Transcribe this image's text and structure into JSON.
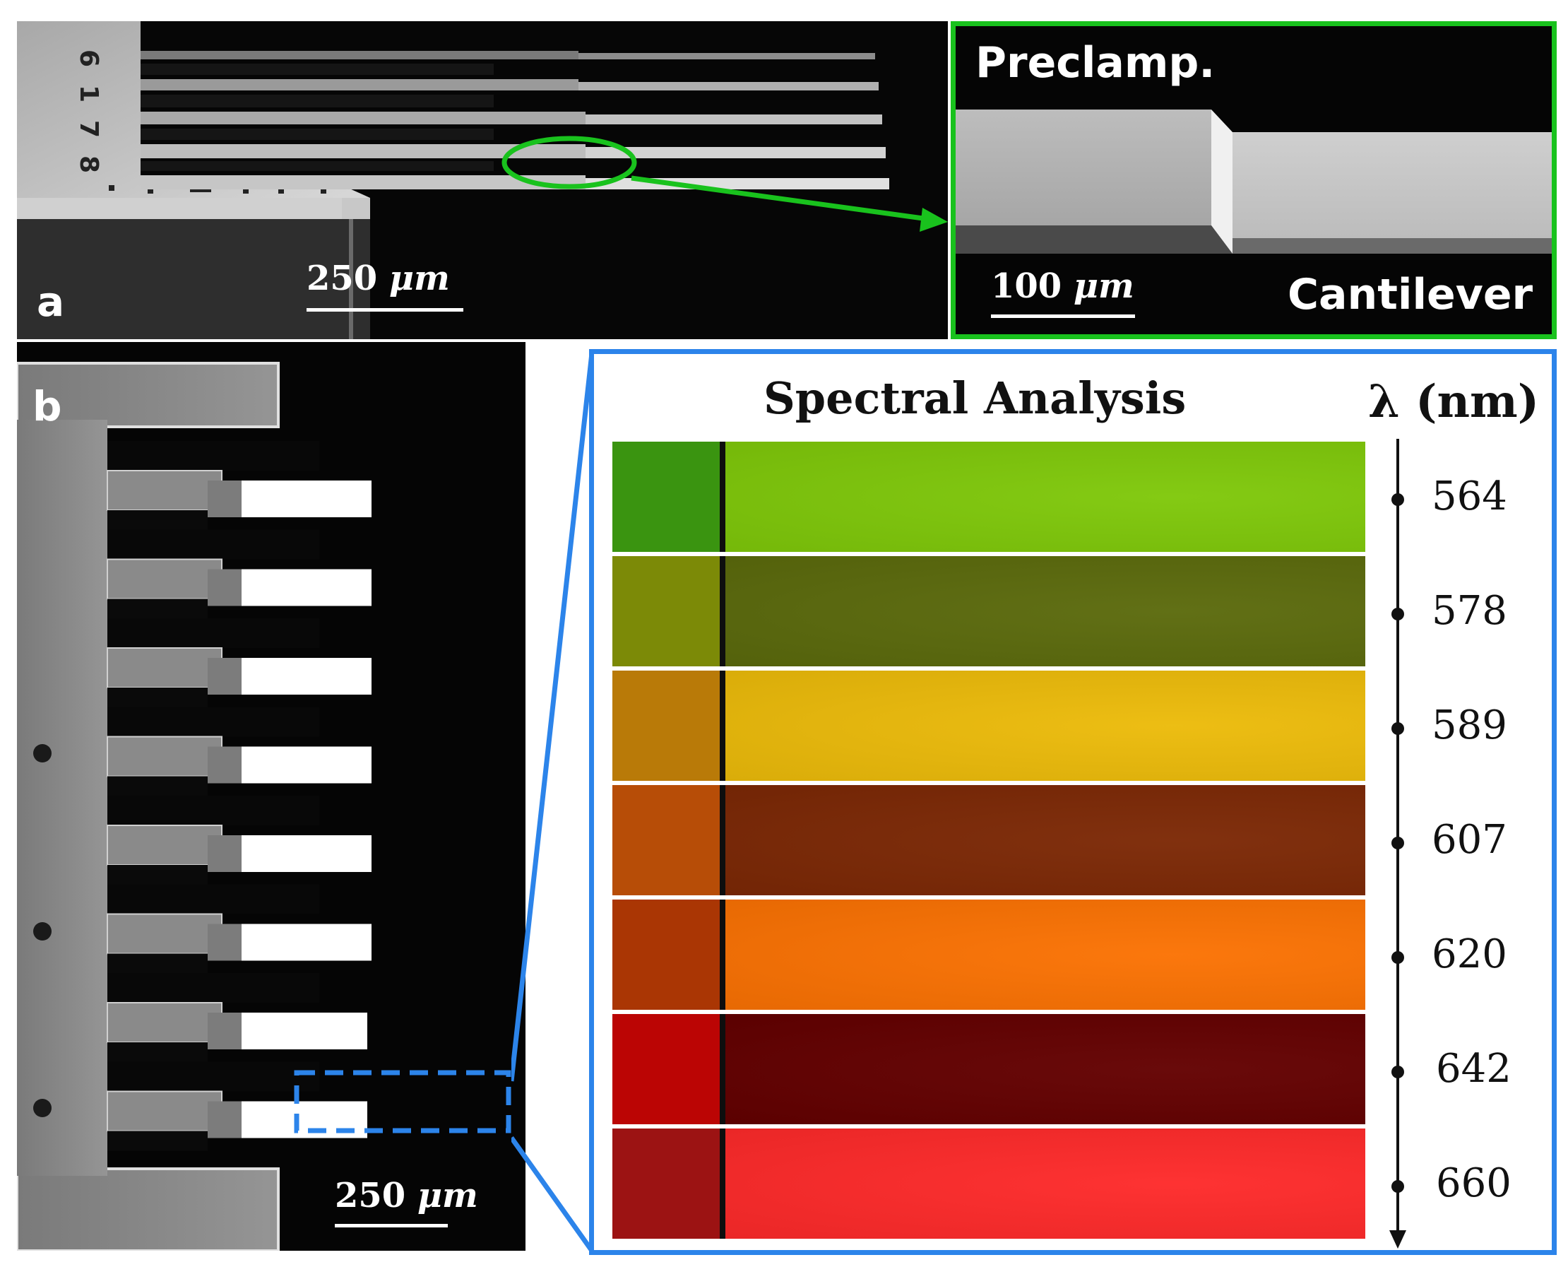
{
  "panel_a": {
    "letter": "a",
    "scale_bar_number": "250",
    "scale_bar_unit": "μm",
    "inset": {
      "label_top": "Preclamp.",
      "label_bottom": "Cantilever",
      "scale_bar_number": "100",
      "scale_bar_unit": "μm",
      "border_color": "#19c21d"
    }
  },
  "panel_b": {
    "letter": "b",
    "scale_bar_number": "250",
    "scale_bar_unit": "μm",
    "highlight_color": "#2c84ea",
    "spectral": {
      "title": "Spectral Analysis",
      "axis_label": "λ (nm)",
      "bands": [
        {
          "wavelength": "564",
          "left_color": "#3a9410",
          "main_color": "#7fc80a"
        },
        {
          "wavelength": "578",
          "left_color": "#7c8a07",
          "main_color": "#5b6a0c"
        },
        {
          "wavelength": "589",
          "left_color": "#b97a08",
          "main_color": "#ecbb0a"
        },
        {
          "wavelength": "607",
          "left_color": "#b74d07",
          "main_color": "#7c2805"
        },
        {
          "wavelength": "620",
          "left_color": "#aa3604",
          "main_color": "#fb7203"
        },
        {
          "wavelength": "642",
          "left_color": "#bb0504",
          "main_color": "#630000"
        },
        {
          "wavelength": "660",
          "left_color": "#9c1313",
          "main_color": "#fe2a2a"
        }
      ]
    }
  }
}
